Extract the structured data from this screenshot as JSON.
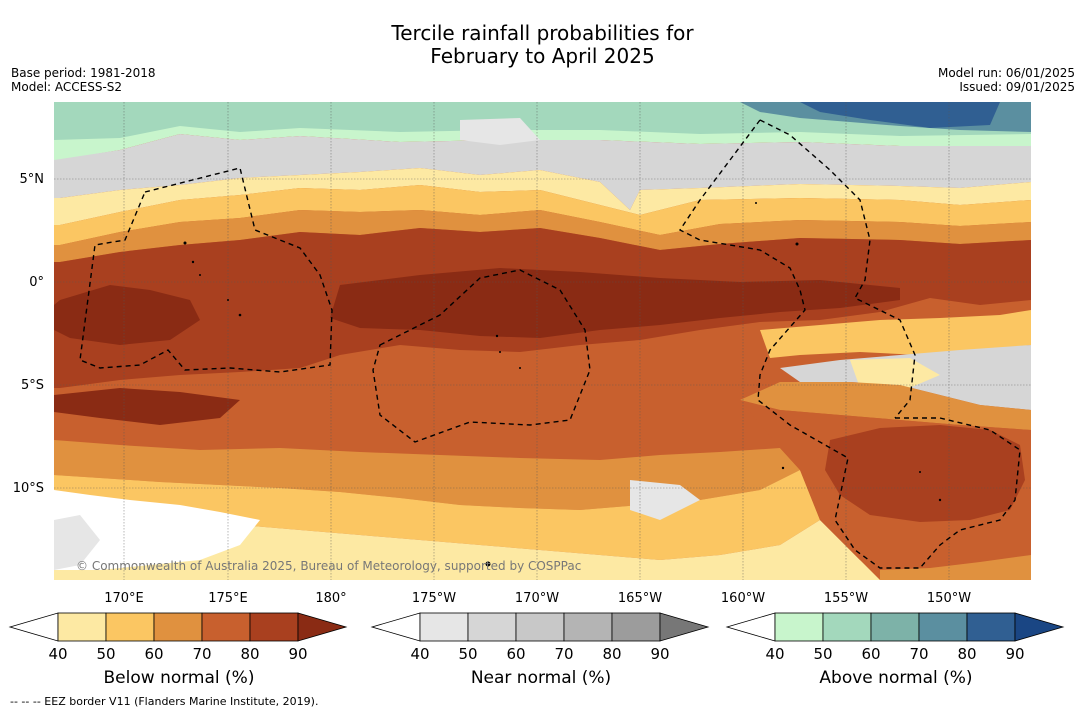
{
  "title": {
    "line1": "Tercile rainfall probabilities for",
    "line2": "February to April 2025"
  },
  "meta": {
    "base_period": "Base period: 1981-2018",
    "model": "Model: ACCESS-S2",
    "model_run": "Model run: 06/01/2025",
    "issued": "Issued: 09/01/2025"
  },
  "map": {
    "latitude_labels": [
      "5°N",
      "0°",
      "5°S",
      "10°S"
    ],
    "longitude_labels": [
      "170°E",
      "175°E",
      "180°",
      "175°W",
      "170°W",
      "165°W",
      "160°W",
      "155°W",
      "150°W"
    ],
    "copyright": "© Commonwealth of Australia 2025, Bureau of Meteorology, supported by COSPPac"
  },
  "colorbars": [
    {
      "name": "below",
      "title": "Below normal (%)",
      "ticks": [
        "40",
        "50",
        "60",
        "70",
        "80",
        "90"
      ],
      "colors": [
        "#ffffff",
        "#fde9a3",
        "#fbc662",
        "#e0913f",
        "#c8602e",
        "#a9401f",
        "#8a2b14"
      ]
    },
    {
      "name": "near",
      "title": "Near normal (%)",
      "ticks": [
        "40",
        "50",
        "60",
        "70",
        "80",
        "90"
      ],
      "colors": [
        "#ffffff",
        "#e6e6e6",
        "#d6d6d6",
        "#c8c8c8",
        "#b4b4b4",
        "#9c9c9c",
        "#777777"
      ]
    },
    {
      "name": "above",
      "title": "Above normal (%)",
      "ticks": [
        "40",
        "50",
        "60",
        "70",
        "80",
        "90"
      ],
      "colors": [
        "#ffffff",
        "#c8f5cc",
        "#a3d8bc",
        "#7db2a8",
        "#5b8fa0",
        "#305f92",
        "#1a4684"
      ]
    }
  ],
  "footnote": "-- -- -- EEZ border V11 (Flanders Marine Institute, 2019).",
  "colors": {
    "below_80": "#a9401f",
    "below_90": "#8a2b14",
    "below_70": "#c8602e",
    "below_60": "#e0913f",
    "below_50": "#fbc662",
    "below_40": "#fde9a3",
    "near_50": "#d6d6d6",
    "near_40": "#e6e6e6",
    "above_40": "#c8f5cc",
    "above_50": "#a3d8bc",
    "above_60": "#7db2a8",
    "above_70": "#5b8fa0",
    "above_80": "#305f92"
  }
}
